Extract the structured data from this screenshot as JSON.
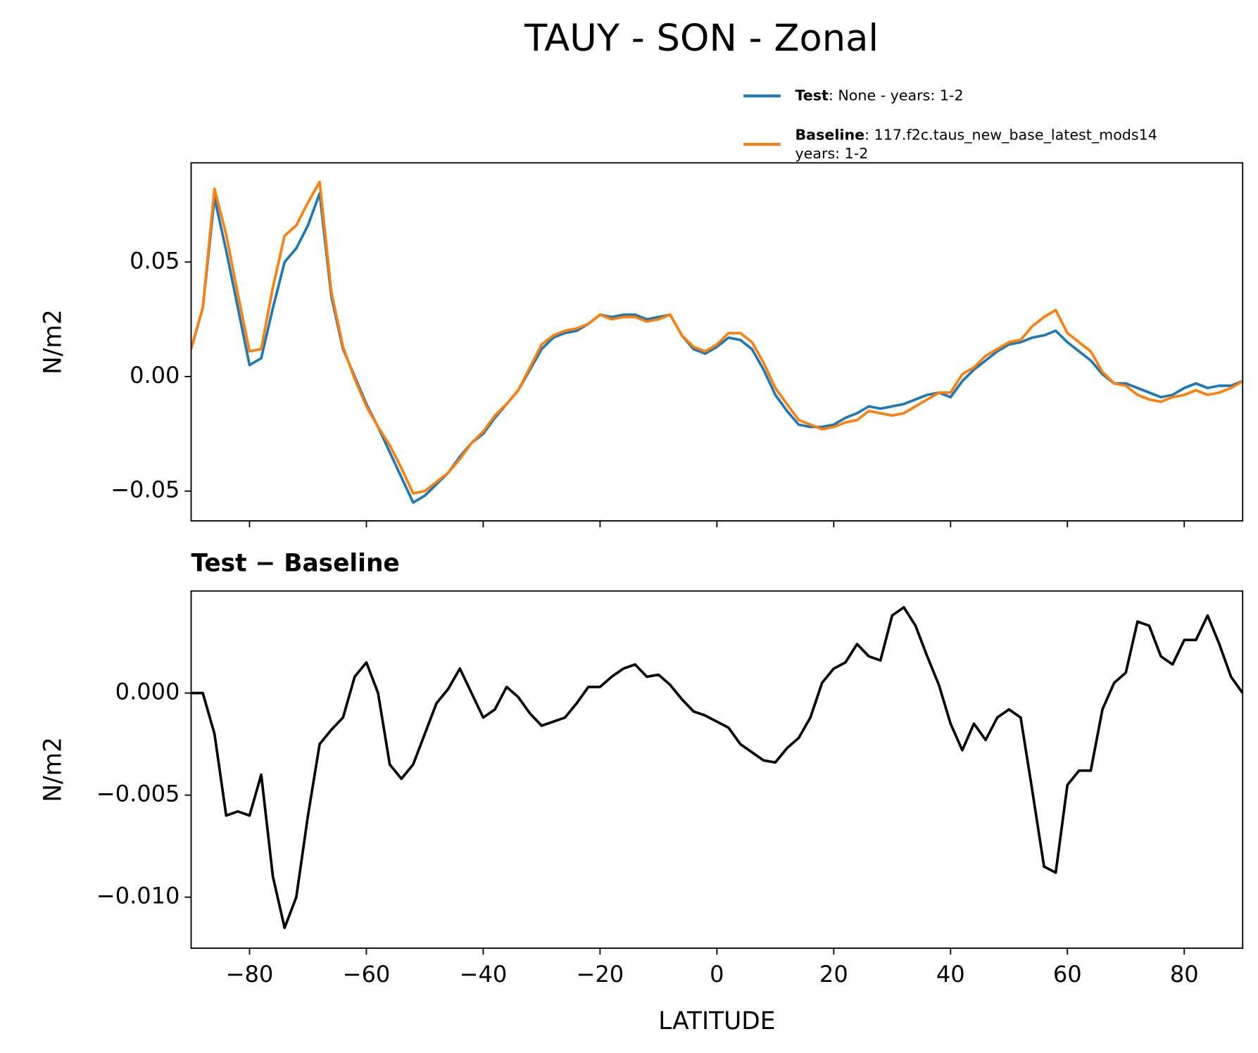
{
  "title": "TAUY - SON - Zonal",
  "chart_data": [
    {
      "type": "line",
      "ylabel": "N/m2",
      "legend": "upper right",
      "xlim": [
        -90,
        90
      ],
      "ylim": [
        -0.063,
        0.0933
      ],
      "xticks": [
        -80,
        -60,
        -40,
        -20,
        0,
        20,
        40,
        60,
        80
      ],
      "yticks": [
        {
          "value": -0.05,
          "label": "−0.05"
        },
        {
          "value": 0,
          "label": "0.00"
        },
        0.05
      ],
      "x": [
        -90,
        -88,
        -86,
        -84,
        -82,
        -80,
        -78,
        -76,
        -74,
        -72,
        -70,
        -68,
        -66,
        -64,
        -62,
        -60,
        -58,
        -56,
        -54,
        -52,
        -50,
        -48,
        -46,
        -44,
        -42,
        -40,
        -38,
        -36,
        -34,
        -32,
        -30,
        -28,
        -26,
        -24,
        -22,
        -20,
        -18,
        -16,
        -14,
        -12,
        -10,
        -8,
        -6,
        -4,
        -2,
        0,
        2,
        4,
        6,
        8,
        10,
        12,
        14,
        16,
        18,
        20,
        22,
        24,
        26,
        28,
        30,
        32,
        34,
        36,
        38,
        40,
        42,
        44,
        46,
        48,
        50,
        52,
        54,
        56,
        58,
        60,
        62,
        64,
        66,
        68,
        70,
        72,
        74,
        76,
        78,
        80,
        82,
        84,
        86,
        88,
        90
      ],
      "series": [
        {
          "name": "Test",
          "description": [
            ": None - years: 1-2"
          ],
          "color": "#1f77b4",
          "values": [
            0.012,
            0.03,
            0.078,
            0.055,
            0.03,
            0.005,
            0.008,
            0.03,
            0.05,
            0.056,
            0.066,
            0.08,
            0.035,
            0.012,
            0.0,
            -0.012,
            -0.022,
            -0.033,
            -0.044,
            -0.055,
            -0.052,
            -0.047,
            -0.042,
            -0.035,
            -0.029,
            -0.025,
            -0.018,
            -0.012,
            -0.006,
            0.003,
            0.012,
            0.017,
            0.019,
            0.02,
            0.023,
            0.027,
            0.026,
            0.027,
            0.027,
            0.025,
            0.026,
            0.027,
            0.018,
            0.012,
            0.01,
            0.013,
            0.017,
            0.016,
            0.012,
            0.003,
            -0.008,
            -0.015,
            -0.021,
            -0.022,
            -0.022,
            -0.021,
            -0.018,
            -0.016,
            -0.013,
            -0.014,
            -0.013,
            -0.012,
            -0.01,
            -0.008,
            -0.007,
            -0.009,
            -0.002,
            0.003,
            0.007,
            0.011,
            0.014,
            0.015,
            0.017,
            0.018,
            0.02,
            0.015,
            0.011,
            0.007,
            0.001,
            -0.003,
            -0.003,
            -0.005,
            -0.007,
            -0.009,
            -0.008,
            -0.005,
            -0.003,
            -0.005,
            -0.004,
            -0.004,
            -0.002
          ]
        },
        {
          "name": "Baseline",
          "description": [
            ": 117.f2c.taus_new_base_latest_mods14",
            "years: 1-2"
          ],
          "color": "#ff7f0e",
          "values": [
            0.012,
            0.03,
            0.082,
            0.062,
            0.036,
            0.011,
            0.012,
            0.039,
            0.0615,
            0.066,
            0.076,
            0.085,
            0.037,
            0.013,
            -0.001,
            -0.013,
            -0.022,
            -0.03,
            -0.04,
            -0.051,
            -0.05,
            -0.046,
            -0.042,
            -0.036,
            -0.029,
            -0.024,
            -0.017,
            -0.012,
            -0.006,
            0.004,
            0.014,
            0.018,
            0.02,
            0.021,
            0.023,
            0.027,
            0.025,
            0.026,
            0.026,
            0.024,
            0.025,
            0.027,
            0.018,
            0.013,
            0.011,
            0.014,
            0.019,
            0.019,
            0.015,
            0.006,
            -0.005,
            -0.012,
            -0.019,
            -0.021,
            -0.023,
            -0.022,
            -0.02,
            -0.019,
            -0.015,
            -0.016,
            -0.017,
            -0.016,
            -0.013,
            -0.01,
            -0.007,
            -0.007,
            0.001,
            0.004,
            0.009,
            0.012,
            0.015,
            0.016,
            0.022,
            0.026,
            0.029,
            0.019,
            0.015,
            0.011,
            0.002,
            -0.003,
            -0.004,
            -0.008,
            -0.01,
            -0.011,
            -0.009,
            -0.008,
            -0.006,
            -0.008,
            -0.007,
            -0.005,
            -0.002
          ]
        }
      ]
    },
    {
      "type": "line",
      "title": "Test − Baseline",
      "xlabel": "LATITUDE",
      "ylabel": "N/m2",
      "xlim": [
        -90,
        90
      ],
      "ylim": [
        -0.0125,
        0.005
      ],
      "color": "#000000",
      "xticks": [
        {
          "value": -80,
          "label": "−80"
        },
        {
          "value": -60,
          "label": "−60"
        },
        {
          "value": -40,
          "label": "−40"
        },
        {
          "value": -20,
          "label": "−20"
        },
        0,
        20,
        40,
        60,
        80
      ],
      "yticks": [
        {
          "value": -0.01,
          "label": "−0.010"
        },
        {
          "value": -0.005,
          "label": "−0.005"
        },
        {
          "value": 0,
          "label": "0.000"
        }
      ],
      "x": [
        -90,
        -88,
        -86,
        -84,
        -82,
        -80,
        -78,
        -76,
        -74,
        -72,
        -70,
        -68,
        -66,
        -64,
        -62,
        -60,
        -58,
        -56,
        -54,
        -52,
        -50,
        -48,
        -46,
        -44,
        -42,
        -40,
        -38,
        -36,
        -34,
        -32,
        -30,
        -28,
        -26,
        -24,
        -22,
        -20,
        -18,
        -16,
        -14,
        -12,
        -10,
        -8,
        -6,
        -4,
        -2,
        0,
        2,
        4,
        6,
        8,
        10,
        12,
        14,
        16,
        18,
        20,
        22,
        24,
        26,
        28,
        30,
        32,
        34,
        36,
        38,
        40,
        42,
        44,
        46,
        48,
        50,
        52,
        54,
        56,
        58,
        60,
        62,
        64,
        66,
        68,
        70,
        72,
        74,
        76,
        78,
        80,
        82,
        84,
        86,
        88,
        90
      ],
      "values": [
        0.0,
        0.0,
        -0.002,
        -0.006,
        -0.0058,
        -0.006,
        -0.004,
        -0.009,
        -0.0115,
        -0.01,
        -0.006,
        -0.0025,
        -0.0018,
        -0.0012,
        0.0008,
        0.0015,
        0.0,
        -0.0035,
        -0.0042,
        -0.0035,
        -0.002,
        -0.0005,
        0.0002,
        0.0012,
        0.0,
        -0.0012,
        -0.0008,
        0.0003,
        -0.0002,
        -0.001,
        -0.0016,
        -0.0014,
        -0.0012,
        -0.0005,
        0.0003,
        0.0003,
        0.0008,
        0.0012,
        0.0014,
        0.0008,
        0.0009,
        0.0004,
        -0.0003,
        -0.0009,
        -0.0011,
        -0.0014,
        -0.0017,
        -0.0025,
        -0.0029,
        -0.0033,
        -0.0034,
        -0.0027,
        -0.0022,
        -0.0012,
        0.0005,
        0.0012,
        0.0015,
        0.0024,
        0.0018,
        0.0016,
        0.0038,
        0.0042,
        0.0033,
        0.0018,
        0.0004,
        -0.0015,
        -0.0028,
        -0.0015,
        -0.0023,
        -0.0012,
        -0.0008,
        -0.0012,
        -0.0048,
        -0.0085,
        -0.0088,
        -0.0045,
        -0.0038,
        -0.0038,
        -0.0008,
        0.0005,
        0.001,
        0.0035,
        0.0033,
        0.0018,
        0.0014,
        0.0026,
        0.0026,
        0.0038,
        0.0024,
        0.0008,
        0.0
      ]
    }
  ]
}
